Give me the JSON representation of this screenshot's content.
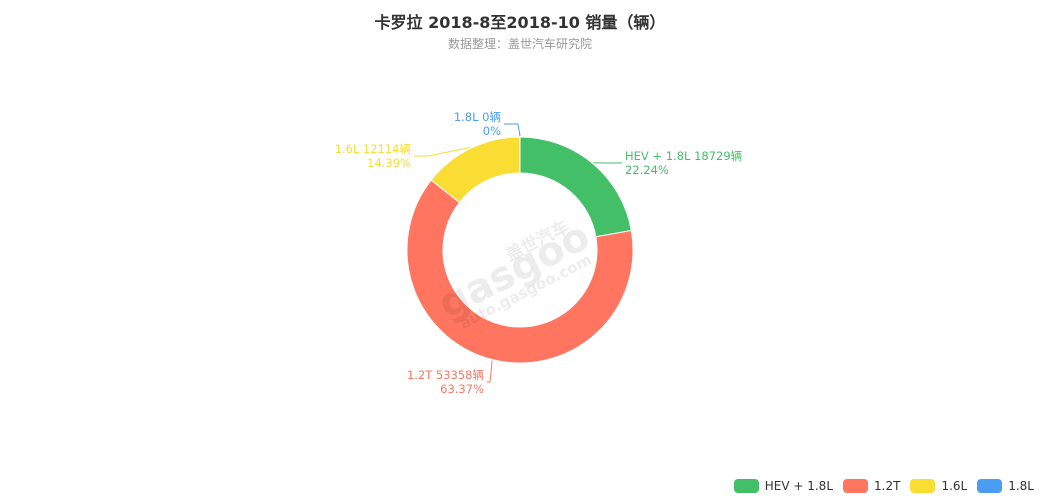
{
  "chart_data": {
    "type": "pie",
    "variant": "donut",
    "title": "卡罗拉 2018-8至2018-10 销量（辆）",
    "subtitle": "数据整理：盖世汽车研究院",
    "slices": [
      {
        "name": "HEV + 1.8L",
        "value": 18729,
        "percent": "22.24%",
        "label": "HEV + 1.8L 18729辆",
        "color": "#43bf67"
      },
      {
        "name": "1.2T",
        "value": 53358,
        "percent": "63.37%",
        "label": "1.2T 53358辆",
        "color": "#ff7560"
      },
      {
        "name": "1.6L",
        "value": 12114,
        "percent": "14.39%",
        "label": "1.6L 12114辆",
        "color": "#f9dd33"
      },
      {
        "name": "1.8L",
        "value": 0,
        "percent": "0%",
        "label": "1.8L 0辆",
        "color": "#4a9df0"
      }
    ],
    "legend_position": "bottom-right"
  },
  "watermark": {
    "brand_cn": "盖世汽车",
    "brand": "gasgoo",
    "url": "auto.gasgoo.com"
  }
}
